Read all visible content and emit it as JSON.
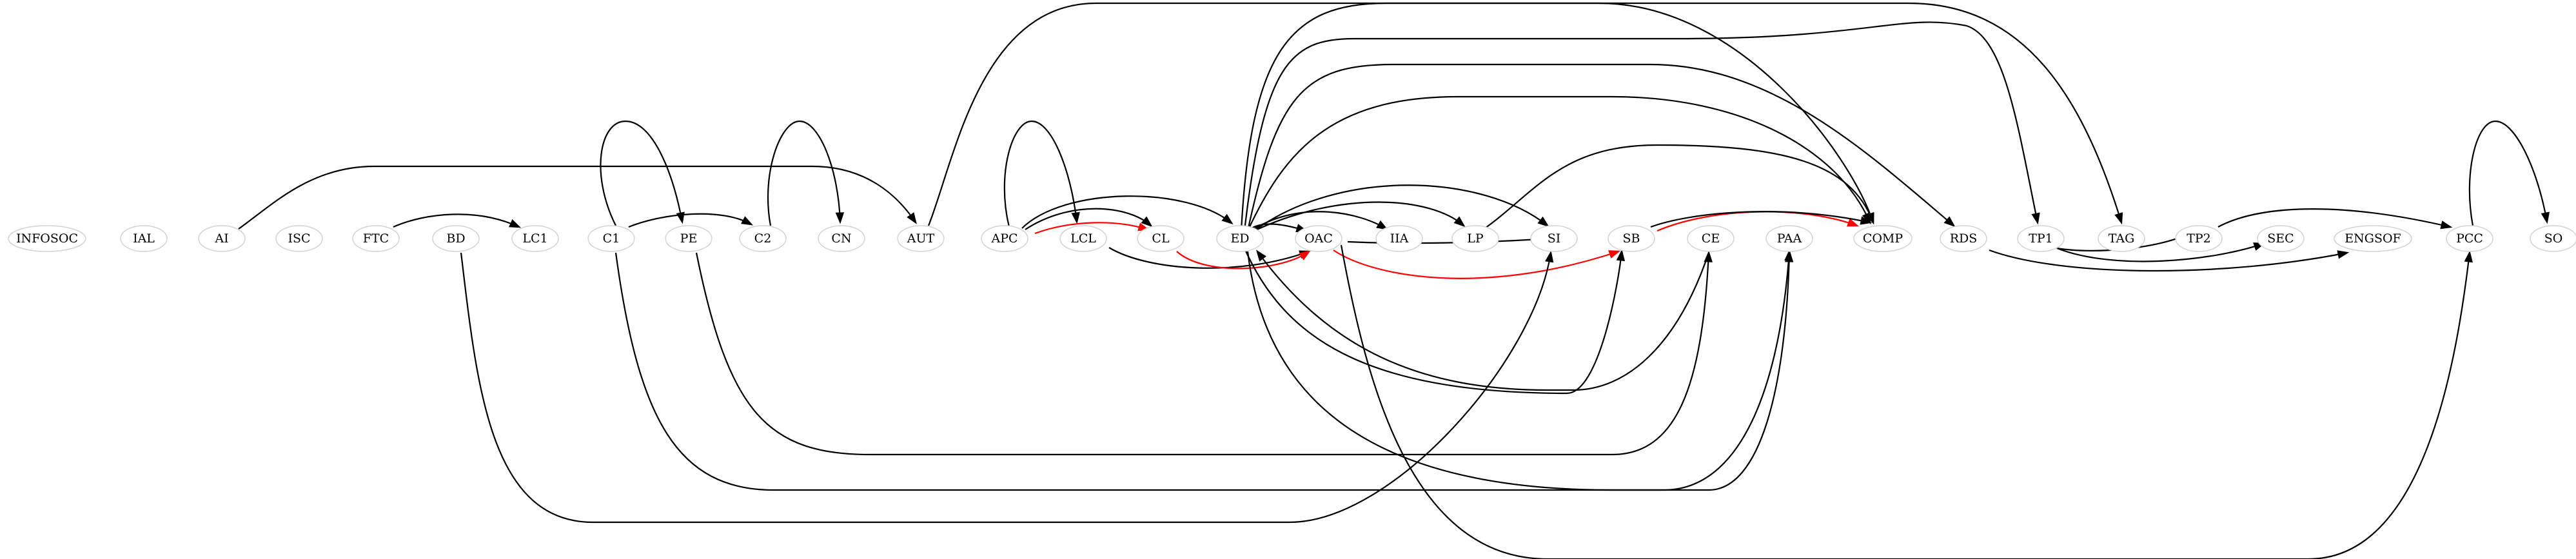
{
  "colors": {
    "edge": "#000000",
    "highlight": "#ff0000",
    "node_border": "#d3d3d3"
  },
  "nodes": [
    {
      "id": "INFOSOC",
      "label": "INFOSOC"
    },
    {
      "id": "IAL",
      "label": "IAL"
    },
    {
      "id": "AI",
      "label": "AI"
    },
    {
      "id": "ISC",
      "label": "ISC"
    },
    {
      "id": "FTC",
      "label": "FTC"
    },
    {
      "id": "BD",
      "label": "BD"
    },
    {
      "id": "LC1",
      "label": "LC1"
    },
    {
      "id": "C1",
      "label": "C1"
    },
    {
      "id": "PE",
      "label": "PE"
    },
    {
      "id": "C2",
      "label": "C2"
    },
    {
      "id": "CN",
      "label": "CN"
    },
    {
      "id": "AUT",
      "label": "AUT"
    },
    {
      "id": "APC",
      "label": "APC"
    },
    {
      "id": "LCL",
      "label": "LCL"
    },
    {
      "id": "CL",
      "label": "CL"
    },
    {
      "id": "ED",
      "label": "ED"
    },
    {
      "id": "OAC",
      "label": "OAC"
    },
    {
      "id": "IIA",
      "label": "IIA"
    },
    {
      "id": "LP",
      "label": "LP"
    },
    {
      "id": "SI",
      "label": "SI"
    },
    {
      "id": "SB",
      "label": "SB"
    },
    {
      "id": "CE",
      "label": "CE"
    },
    {
      "id": "PAA",
      "label": "PAA"
    },
    {
      "id": "COMP",
      "label": "COMP"
    },
    {
      "id": "RDS",
      "label": "RDS"
    },
    {
      "id": "TP1",
      "label": "TP1"
    },
    {
      "id": "TAG",
      "label": "TAG"
    },
    {
      "id": "TP2",
      "label": "TP2"
    },
    {
      "id": "SEC",
      "label": "SEC"
    },
    {
      "id": "ENGSOF",
      "label": "ENGSOF"
    },
    {
      "id": "PCC",
      "label": "PCC"
    },
    {
      "id": "SO",
      "label": "SO"
    }
  ],
  "edges": [
    {
      "from": "AI",
      "to": "AUT",
      "highlight": false
    },
    {
      "from": "FTC",
      "to": "LC1",
      "highlight": false
    },
    {
      "from": "C1",
      "to": "PE",
      "highlight": false
    },
    {
      "from": "C1",
      "to": "C2",
      "highlight": false
    },
    {
      "from": "C2",
      "to": "CN",
      "highlight": false
    },
    {
      "from": "AUT",
      "to": "COMP",
      "highlight": false
    },
    {
      "from": "APC",
      "to": "LCL",
      "highlight": false
    },
    {
      "from": "APC",
      "to": "CL",
      "highlight": true
    },
    {
      "from": "APC",
      "to": "ED",
      "highlight": false
    },
    {
      "from": "APC",
      "to": "CL",
      "highlight": false
    },
    {
      "from": "LCL",
      "to": "OAC",
      "highlight": false
    },
    {
      "from": "CL",
      "to": "OAC",
      "highlight": true
    },
    {
      "from": "ED",
      "to": "OAC",
      "highlight": false
    },
    {
      "from": "ED",
      "to": "IIA",
      "highlight": false
    },
    {
      "from": "ED",
      "to": "LP",
      "highlight": false
    },
    {
      "from": "ED",
      "to": "SI",
      "highlight": false
    },
    {
      "from": "ED",
      "to": "SB",
      "highlight": false
    },
    {
      "from": "ED",
      "to": "COMP",
      "highlight": false
    },
    {
      "from": "ED",
      "to": "RDS",
      "highlight": false
    },
    {
      "from": "ED",
      "to": "TP1",
      "highlight": false
    },
    {
      "from": "ED",
      "to": "TAG",
      "highlight": false
    },
    {
      "from": "ED",
      "to": "PAA",
      "highlight": false
    },
    {
      "from": "OAC",
      "to": "SB",
      "highlight": true
    },
    {
      "from": "OAC",
      "to": "SI",
      "highlight": false
    },
    {
      "from": "OAC",
      "to": "PCC",
      "highlight": false
    },
    {
      "from": "LP",
      "to": "COMP",
      "highlight": false
    },
    {
      "from": "SB",
      "to": "COMP",
      "highlight": true
    },
    {
      "from": "SB",
      "to": "COMP",
      "highlight": false
    },
    {
      "from": "BD",
      "to": "SI",
      "highlight": false
    },
    {
      "from": "PE",
      "to": "CE",
      "highlight": false
    },
    {
      "from": "CE",
      "to": "ED",
      "highlight": false
    },
    {
      "from": "C1",
      "to": "PAA",
      "highlight": false
    },
    {
      "from": "RDS",
      "to": "ENGSOF",
      "highlight": false
    },
    {
      "from": "TP1",
      "to": "TP2",
      "highlight": false
    },
    {
      "from": "TP1",
      "to": "SEC",
      "highlight": false
    },
    {
      "from": "TP2",
      "to": "PCC",
      "highlight": false
    },
    {
      "from": "PCC",
      "to": "SO",
      "highlight": false
    }
  ]
}
